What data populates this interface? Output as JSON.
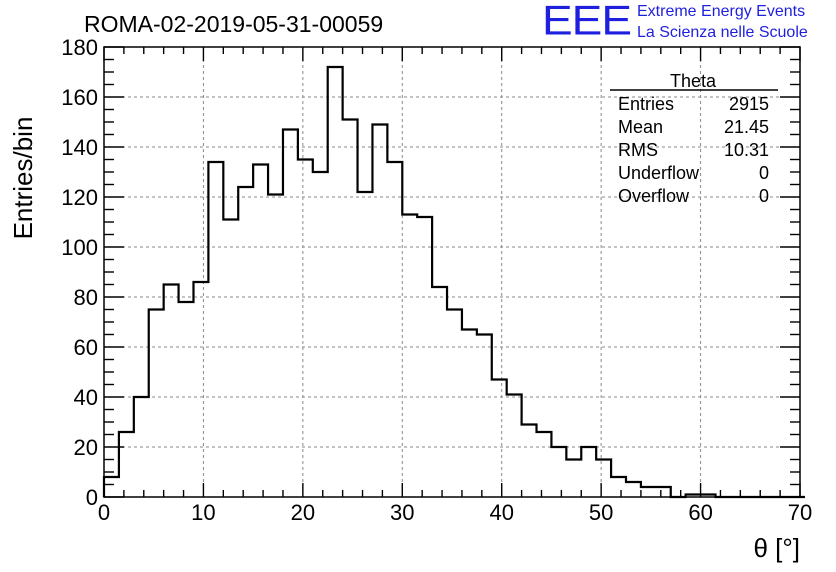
{
  "chart_data": {
    "type": "histogram",
    "title": "ROMA-02-2019-05-31-00059",
    "xlabel": "θ [°]",
    "ylabel": "Entries/bin",
    "xlim": [
      0,
      70
    ],
    "ylim": [
      0,
      180
    ],
    "x_ticks": [
      0,
      10,
      20,
      30,
      40,
      50,
      60,
      70
    ],
    "y_ticks": [
      0,
      20,
      40,
      60,
      80,
      100,
      120,
      140,
      160,
      180
    ],
    "grid": true,
    "bin_width": 1.5,
    "bin_start": 0,
    "values": [
      8,
      26,
      40,
      75,
      85,
      78,
      86,
      134,
      111,
      124,
      133,
      121,
      147,
      135,
      130,
      172,
      151,
      122,
      149,
      134,
      113,
      112,
      84,
      75,
      67,
      65,
      47,
      41,
      29,
      26,
      20,
      15,
      20,
      15,
      8,
      6,
      4,
      4,
      0,
      1,
      1,
      0,
      0,
      0,
      0,
      0,
      0
    ],
    "stats_box": {
      "title": "Theta",
      "rows": [
        {
          "label": "Entries",
          "value": "2915"
        },
        {
          "label": "Mean",
          "value": "21.45"
        },
        {
          "label": "RMS",
          "value": "10.31"
        },
        {
          "label": "Underflow",
          "value": "0"
        },
        {
          "label": "Overflow",
          "value": "0"
        }
      ]
    }
  },
  "logo": {
    "mark": "EEE",
    "line1": "Extreme Energy Events",
    "line2": "La Scienza nelle Scuole",
    "color": "#1f1fe0"
  }
}
